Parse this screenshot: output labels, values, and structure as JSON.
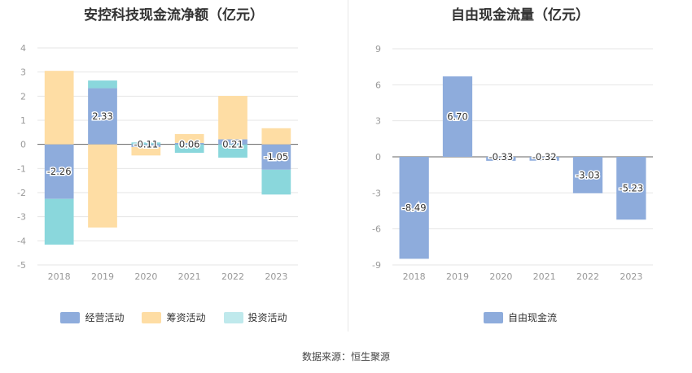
{
  "source_text": "数据来源：恒生聚源",
  "chart_data": [
    {
      "type": "bar",
      "stacked": true,
      "title": "安控科技现金流净额（亿元）",
      "categories": [
        "2018",
        "2019",
        "2020",
        "2021",
        "2022",
        "2023"
      ],
      "ylim": [
        -5,
        4
      ],
      "yticks": [
        "4",
        "3",
        "2",
        "1",
        "0",
        "-1",
        "-2",
        "-3",
        "-4",
        "-5"
      ],
      "grid": true,
      "legend_position": "bottom",
      "series": [
        {
          "name": "经营活动",
          "color": "#8eacdc",
          "values": [
            -2.26,
            2.33,
            -0.11,
            0.06,
            0.21,
            -1.05
          ],
          "labels": [
            "-2.26",
            "2.33",
            "-0.11",
            "0.06",
            "0.21",
            "-1.05"
          ]
        },
        {
          "name": "筹资活动",
          "color": "#fedda4",
          "values": [
            3.05,
            -3.45,
            -0.35,
            0.37,
            1.8,
            0.67
          ]
        },
        {
          "name": "投资活动",
          "color": "#8ad7dc",
          "values": [
            -1.9,
            0.32,
            0.08,
            -0.35,
            -0.55,
            -1.03
          ]
        }
      ]
    },
    {
      "type": "bar",
      "title": "自由现金流量（亿元）",
      "categories": [
        "2018",
        "2019",
        "2020",
        "2021",
        "2022",
        "2023"
      ],
      "ylim": [
        -9,
        9
      ],
      "yticks": [
        "9",
        "6",
        "3",
        "0",
        "-3",
        "-6",
        "-9"
      ],
      "grid": true,
      "legend_position": "bottom",
      "series": [
        {
          "name": "自由现金流",
          "color": "#8eacdc",
          "values": [
            -8.49,
            6.7,
            -0.33,
            -0.32,
            -3.03,
            -5.23
          ],
          "labels": [
            "-8.49",
            "6.70",
            "-0.33",
            "-0.32",
            "-3.03",
            "-5.23"
          ]
        }
      ]
    }
  ]
}
